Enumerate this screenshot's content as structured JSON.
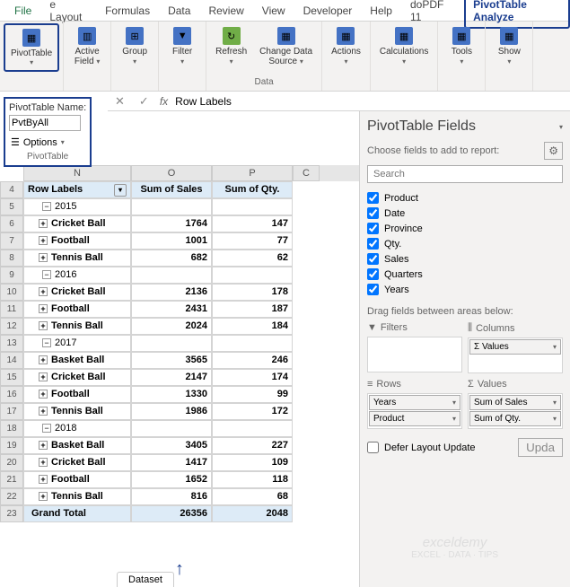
{
  "ribbon": {
    "tabs": {
      "file": "File",
      "layout": "e Layout",
      "formulas": "Formulas",
      "data": "Data",
      "review": "Review",
      "view": "View",
      "developer": "Developer",
      "help": "Help",
      "dopdf": "doPDF 11",
      "analyze": "PivotTable Analyze"
    },
    "groups": {
      "pivottable": "PivotTable",
      "active_field": "Active\nField",
      "group": "Group",
      "filter": "Filter",
      "refresh": "Refresh",
      "change_data": "Change Data\nSource",
      "data_label": "Data",
      "actions": "Actions",
      "calculations": "Calculations",
      "tools": "Tools",
      "show": "Show"
    }
  },
  "name_box": {
    "label": "PivotTable Name:",
    "value": "PvtByAll",
    "options": "Options",
    "group_label": "PivotTable"
  },
  "formula_bar": {
    "fx": "fx",
    "text": "Row Labels"
  },
  "columns": {
    "n": "N",
    "o": "O",
    "p": "P",
    "c": "C"
  },
  "headers": {
    "row_labels": "Row Labels",
    "sum_sales": "Sum of Sales",
    "sum_qty": "Sum of Qty."
  },
  "rows": [
    {
      "num": "4",
      "type": "header"
    },
    {
      "num": "5",
      "type": "year",
      "label": "2015"
    },
    {
      "num": "6",
      "type": "item",
      "label": "Cricket Ball",
      "sales": "1764",
      "qty": "147"
    },
    {
      "num": "7",
      "type": "item",
      "label": "Football",
      "sales": "1001",
      "qty": "77"
    },
    {
      "num": "8",
      "type": "item",
      "label": "Tennis Ball",
      "sales": "682",
      "qty": "62"
    },
    {
      "num": "9",
      "type": "year",
      "label": "2016"
    },
    {
      "num": "10",
      "type": "item",
      "label": "Cricket Ball",
      "sales": "2136",
      "qty": "178"
    },
    {
      "num": "11",
      "type": "item",
      "label": "Football",
      "sales": "2431",
      "qty": "187"
    },
    {
      "num": "12",
      "type": "item",
      "label": "Tennis Ball",
      "sales": "2024",
      "qty": "184"
    },
    {
      "num": "13",
      "type": "year",
      "label": "2017"
    },
    {
      "num": "14",
      "type": "item",
      "label": "Basket Ball",
      "sales": "3565",
      "qty": "246"
    },
    {
      "num": "15",
      "type": "item",
      "label": "Cricket Ball",
      "sales": "2147",
      "qty": "174"
    },
    {
      "num": "16",
      "type": "item",
      "label": "Football",
      "sales": "1330",
      "qty": "99"
    },
    {
      "num": "17",
      "type": "item",
      "label": "Tennis Ball",
      "sales": "1986",
      "qty": "172"
    },
    {
      "num": "18",
      "type": "year",
      "label": "2018"
    },
    {
      "num": "19",
      "type": "item",
      "label": "Basket Ball",
      "sales": "3405",
      "qty": "227"
    },
    {
      "num": "20",
      "type": "item",
      "label": "Cricket Ball",
      "sales": "1417",
      "qty": "109"
    },
    {
      "num": "21",
      "type": "item",
      "label": "Football",
      "sales": "1652",
      "qty": "118"
    },
    {
      "num": "22",
      "type": "item",
      "label": "Tennis Ball",
      "sales": "816",
      "qty": "68"
    },
    {
      "num": "23",
      "type": "total",
      "label": "Grand Total",
      "sales": "26356",
      "qty": "2048"
    }
  ],
  "sheet_tab": "Dataset",
  "fields_panel": {
    "title": "PivotTable Fields",
    "subtitle": "Choose fields to add to report:",
    "search_placeholder": "Search",
    "fields": [
      "Product",
      "Date",
      "Province",
      "Qty.",
      "Sales",
      "Quarters",
      "Years"
    ],
    "drag_label": "Drag fields between areas below:",
    "filters_title": "Filters",
    "columns_title": "Columns",
    "rows_title": "Rows",
    "values_title": "Values",
    "columns_items": [
      "Σ Values"
    ],
    "rows_items": [
      "Years",
      "Product"
    ],
    "values_items": [
      "Sum of Sales",
      "Sum of Qty."
    ],
    "defer": "Defer Layout Update",
    "update": "Upda"
  },
  "watermark": {
    "brand": "exceldemy",
    "tagline": "EXCEL · DATA · TIPS"
  },
  "colors": {
    "highlight_border": "#1a3d8f",
    "excel_green": "#217346",
    "header_bg": "#ddebf7",
    "ribbon_bg": "#f3f2f1"
  }
}
